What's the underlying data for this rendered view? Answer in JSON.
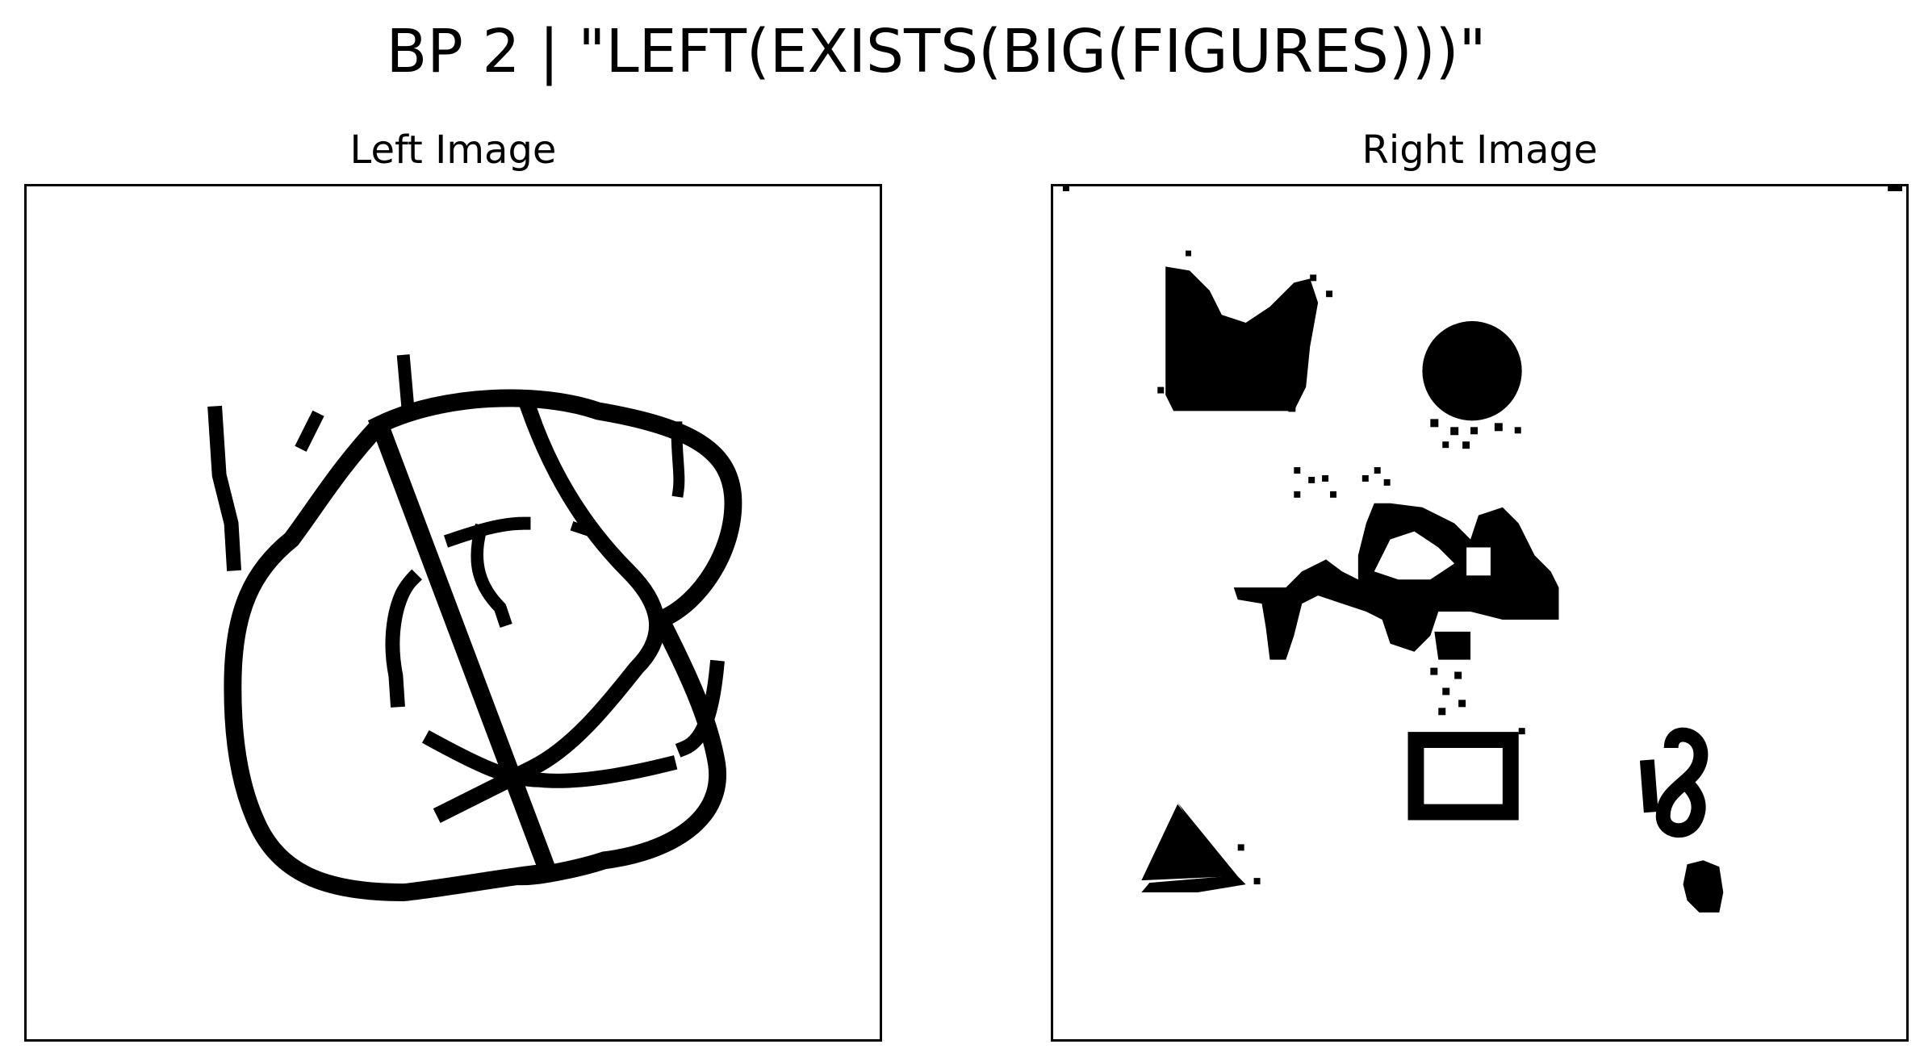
{
  "title": "BP 2 | \"LEFT(EXISTS(BIG(FIGURES)))\"",
  "panels": {
    "left": {
      "title": "Left Image",
      "content": "one big hand-drawn figure"
    },
    "right": {
      "title": "Right Image",
      "content": "several small figures: blob, circle, irregular shape, dots, square outline, triangle, figure-eight, small blob"
    }
  },
  "colors": {
    "ink": "#000000",
    "background": "#ffffff"
  }
}
